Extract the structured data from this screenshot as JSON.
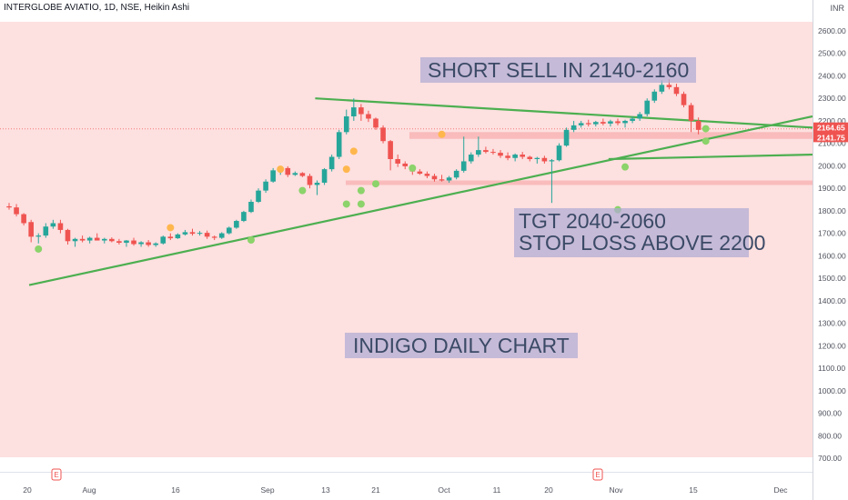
{
  "header": {
    "title": "INTERGLOBE AVIATIO, 1D, NSE, Heikin Ashi",
    "currency": "INR"
  },
  "annotations": {
    "short": "SHORT SELL IN 2140-2160",
    "tgt": "TGT 2040-2060",
    "stop": "STOP LOSS ABOVE 2200",
    "daily": "INDIGO DAILY CHART"
  },
  "price_tags": {
    "upper": "2164.65",
    "lower": "2141.75"
  },
  "colors": {
    "bull": "#26a69a",
    "bear": "#ef5350",
    "trendline": "#4caf50",
    "background_zone": "#fde0e0",
    "support_zone": "#f8b4b4",
    "low_marker": "#8bd36a",
    "high_marker": "#ffb74d"
  },
  "chart_data": {
    "type": "candlestick",
    "candle_style": "Heikin Ashi",
    "symbol": "INTERGLOBE AVIATIO",
    "interval": "1D",
    "exchange": "NSE",
    "ylim": [
      680,
      2720
    ],
    "y_ticks": [
      700,
      800,
      900,
      1000,
      1100,
      1200,
      1300,
      1400,
      1500,
      1600,
      1700,
      1800,
      1900,
      2000,
      2100,
      2200,
      2300,
      2400,
      2500,
      2600
    ],
    "x_ticks": [
      "20",
      "Aug",
      "16",
      "Sep",
      "13",
      "21",
      "Oct",
      "11",
      "20",
      "Nov",
      "15",
      "Dec"
    ],
    "earnings_markers": [
      "E",
      "E"
    ],
    "candles": [
      {
        "o": 1820,
        "h": 1835,
        "l": 1805,
        "c": 1815
      },
      {
        "o": 1815,
        "h": 1830,
        "l": 1775,
        "c": 1785
      },
      {
        "o": 1785,
        "h": 1790,
        "l": 1735,
        "c": 1745
      },
      {
        "o": 1750,
        "h": 1760,
        "l": 1660,
        "c": 1685
      },
      {
        "o": 1685,
        "h": 1700,
        "l": 1655,
        "c": 1690
      },
      {
        "o": 1690,
        "h": 1745,
        "l": 1680,
        "c": 1730
      },
      {
        "o": 1730,
        "h": 1760,
        "l": 1720,
        "c": 1745
      },
      {
        "o": 1745,
        "h": 1760,
        "l": 1700,
        "c": 1715
      },
      {
        "o": 1715,
        "h": 1720,
        "l": 1650,
        "c": 1665
      },
      {
        "o": 1665,
        "h": 1680,
        "l": 1640,
        "c": 1675
      },
      {
        "o": 1675,
        "h": 1690,
        "l": 1660,
        "c": 1668
      },
      {
        "o": 1668,
        "h": 1685,
        "l": 1655,
        "c": 1680
      },
      {
        "o": 1680,
        "h": 1700,
        "l": 1670,
        "c": 1668
      },
      {
        "o": 1668,
        "h": 1680,
        "l": 1655,
        "c": 1675
      },
      {
        "o": 1675,
        "h": 1682,
        "l": 1660,
        "c": 1665
      },
      {
        "o": 1665,
        "h": 1675,
        "l": 1650,
        "c": 1658
      },
      {
        "o": 1658,
        "h": 1670,
        "l": 1640,
        "c": 1668
      },
      {
        "o": 1668,
        "h": 1680,
        "l": 1645,
        "c": 1652
      },
      {
        "o": 1652,
        "h": 1665,
        "l": 1640,
        "c": 1660
      },
      {
        "o": 1660,
        "h": 1670,
        "l": 1640,
        "c": 1648
      },
      {
        "o": 1648,
        "h": 1660,
        "l": 1640,
        "c": 1655
      },
      {
        "o": 1655,
        "h": 1690,
        "l": 1650,
        "c": 1685
      },
      {
        "o": 1685,
        "h": 1700,
        "l": 1670,
        "c": 1678
      },
      {
        "o": 1678,
        "h": 1700,
        "l": 1675,
        "c": 1695
      },
      {
        "o": 1695,
        "h": 1715,
        "l": 1690,
        "c": 1705
      },
      {
        "o": 1705,
        "h": 1720,
        "l": 1690,
        "c": 1698
      },
      {
        "o": 1698,
        "h": 1710,
        "l": 1690,
        "c": 1702
      },
      {
        "o": 1702,
        "h": 1712,
        "l": 1675,
        "c": 1685
      },
      {
        "o": 1685,
        "h": 1690,
        "l": 1670,
        "c": 1680
      },
      {
        "o": 1680,
        "h": 1705,
        "l": 1675,
        "c": 1700
      },
      {
        "o": 1700,
        "h": 1730,
        "l": 1695,
        "c": 1725
      },
      {
        "o": 1725,
        "h": 1760,
        "l": 1720,
        "c": 1755
      },
      {
        "o": 1755,
        "h": 1800,
        "l": 1750,
        "c": 1795
      },
      {
        "o": 1795,
        "h": 1850,
        "l": 1790,
        "c": 1840
      },
      {
        "o": 1840,
        "h": 1900,
        "l": 1835,
        "c": 1890
      },
      {
        "o": 1890,
        "h": 1940,
        "l": 1880,
        "c": 1930
      },
      {
        "o": 1930,
        "h": 1990,
        "l": 1925,
        "c": 1980
      },
      {
        "o": 1980,
        "h": 2000,
        "l": 1960,
        "c": 1990
      },
      {
        "o": 1990,
        "h": 1998,
        "l": 1950,
        "c": 1960
      },
      {
        "o": 1960,
        "h": 1975,
        "l": 1955,
        "c": 1968
      },
      {
        "o": 1968,
        "h": 1972,
        "l": 1950,
        "c": 1955
      },
      {
        "o": 1955,
        "h": 1965,
        "l": 1900,
        "c": 1915
      },
      {
        "o": 1915,
        "h": 1935,
        "l": 1870,
        "c": 1925
      },
      {
        "o": 1925,
        "h": 1990,
        "l": 1915,
        "c": 1985
      },
      {
        "o": 1985,
        "h": 2050,
        "l": 1975,
        "c": 2040
      },
      {
        "o": 2040,
        "h": 2160,
        "l": 2030,
        "c": 2150
      },
      {
        "o": 2150,
        "h": 2250,
        "l": 2140,
        "c": 2220
      },
      {
        "o": 2220,
        "h": 2300,
        "l": 2200,
        "c": 2260
      },
      {
        "o": 2260,
        "h": 2275,
        "l": 2200,
        "c": 2230
      },
      {
        "o": 2230,
        "h": 2245,
        "l": 2195,
        "c": 2210
      },
      {
        "o": 2210,
        "h": 2215,
        "l": 2160,
        "c": 2170
      },
      {
        "o": 2170,
        "h": 2180,
        "l": 2100,
        "c": 2110
      },
      {
        "o": 2110,
        "h": 2115,
        "l": 1980,
        "c": 2030
      },
      {
        "o": 2030,
        "h": 2050,
        "l": 1995,
        "c": 2010
      },
      {
        "o": 2010,
        "h": 2020,
        "l": 1985,
        "c": 1998
      },
      {
        "o": 1998,
        "h": 2005,
        "l": 1960,
        "c": 1975
      },
      {
        "o": 1975,
        "h": 1985,
        "l": 1960,
        "c": 1965
      },
      {
        "o": 1965,
        "h": 1975,
        "l": 1945,
        "c": 1955
      },
      {
        "o": 1955,
        "h": 1965,
        "l": 1930,
        "c": 1940
      },
      {
        "o": 1940,
        "h": 1960,
        "l": 1930,
        "c": 1935
      },
      {
        "o": 1935,
        "h": 1955,
        "l": 1925,
        "c": 1948
      },
      {
        "o": 1948,
        "h": 1985,
        "l": 1940,
        "c": 1978
      },
      {
        "o": 1978,
        "h": 2130,
        "l": 1970,
        "c": 2020
      },
      {
        "o": 2020,
        "h": 2060,
        "l": 2010,
        "c": 2050
      },
      {
        "o": 2050,
        "h": 2130,
        "l": 2040,
        "c": 2070
      },
      {
        "o": 2070,
        "h": 2085,
        "l": 2055,
        "c": 2062
      },
      {
        "o": 2062,
        "h": 2075,
        "l": 2050,
        "c": 2058
      },
      {
        "o": 2058,
        "h": 2070,
        "l": 2035,
        "c": 2045
      },
      {
        "o": 2045,
        "h": 2060,
        "l": 2025,
        "c": 2035
      },
      {
        "o": 2035,
        "h": 2055,
        "l": 2020,
        "c": 2050
      },
      {
        "o": 2050,
        "h": 2062,
        "l": 2030,
        "c": 2040
      },
      {
        "o": 2040,
        "h": 2045,
        "l": 2020,
        "c": 2030
      },
      {
        "o": 2030,
        "h": 2040,
        "l": 2010,
        "c": 2035
      },
      {
        "o": 2035,
        "h": 2045,
        "l": 2010,
        "c": 2020
      },
      {
        "o": 2020,
        "h": 2030,
        "l": 1835,
        "c": 2025
      },
      {
        "o": 2025,
        "h": 2100,
        "l": 2020,
        "c": 2090
      },
      {
        "o": 2090,
        "h": 2170,
        "l": 2085,
        "c": 2160
      },
      {
        "o": 2160,
        "h": 2200,
        "l": 2150,
        "c": 2180
      },
      {
        "o": 2180,
        "h": 2200,
        "l": 2170,
        "c": 2190
      },
      {
        "o": 2190,
        "h": 2205,
        "l": 2175,
        "c": 2185
      },
      {
        "o": 2185,
        "h": 2200,
        "l": 2175,
        "c": 2195
      },
      {
        "o": 2195,
        "h": 2210,
        "l": 2180,
        "c": 2188
      },
      {
        "o": 2188,
        "h": 2205,
        "l": 2175,
        "c": 2198
      },
      {
        "o": 2198,
        "h": 2210,
        "l": 2180,
        "c": 2190
      },
      {
        "o": 2190,
        "h": 2205,
        "l": 2170,
        "c": 2200
      },
      {
        "o": 2200,
        "h": 2220,
        "l": 2190,
        "c": 2210
      },
      {
        "o": 2210,
        "h": 2240,
        "l": 2200,
        "c": 2230
      },
      {
        "o": 2230,
        "h": 2300,
        "l": 2220,
        "c": 2290
      },
      {
        "o": 2290,
        "h": 2340,
        "l": 2280,
        "c": 2330
      },
      {
        "o": 2330,
        "h": 2380,
        "l": 2320,
        "c": 2360
      },
      {
        "o": 2360,
        "h": 2385,
        "l": 2340,
        "c": 2350
      },
      {
        "o": 2350,
        "h": 2365,
        "l": 2310,
        "c": 2320
      },
      {
        "o": 2320,
        "h": 2330,
        "l": 2260,
        "c": 2270
      },
      {
        "o": 2270,
        "h": 2280,
        "l": 2150,
        "c": 2200
      },
      {
        "o": 2200,
        "h": 2215,
        "l": 2140,
        "c": 2160
      }
    ],
    "trendlines": [
      {
        "from": {
          "i": 1,
          "price": 1470
        },
        "to": {
          "i": 106,
          "price": 2220
        }
      },
      {
        "from": {
          "i": 40,
          "price": 2300
        },
        "to": {
          "i": 106,
          "price": 2170
        }
      },
      {
        "from": {
          "i": 80,
          "price": 2030
        },
        "to": {
          "i": 106,
          "price": 2050
        }
      }
    ],
    "zones": [
      {
        "price_low": 2120,
        "price_high": 2150
      },
      {
        "price_low": 1915,
        "price_high": 1935
      }
    ],
    "low_markers": [
      {
        "i": 4,
        "price": 1630
      },
      {
        "i": 33,
        "price": 1670
      },
      {
        "i": 40,
        "price": 1890
      },
      {
        "i": 46,
        "price": 1830
      },
      {
        "i": 48,
        "price": 1890
      },
      {
        "i": 48,
        "price": 1830
      },
      {
        "i": 50,
        "price": 1920
      },
      {
        "i": 55,
        "price": 1990
      },
      {
        "i": 83,
        "price": 1805
      },
      {
        "i": 84,
        "price": 1995
      },
      {
        "i": 95,
        "price": 2165
      },
      {
        "i": 95,
        "price": 2110
      }
    ],
    "high_markers": [
      {
        "i": 22,
        "price": 1725
      },
      {
        "i": 37,
        "price": 1985
      },
      {
        "i": 46,
        "price": 1985
      },
      {
        "i": 47,
        "price": 2065
      },
      {
        "i": 59,
        "price": 2140
      }
    ]
  }
}
